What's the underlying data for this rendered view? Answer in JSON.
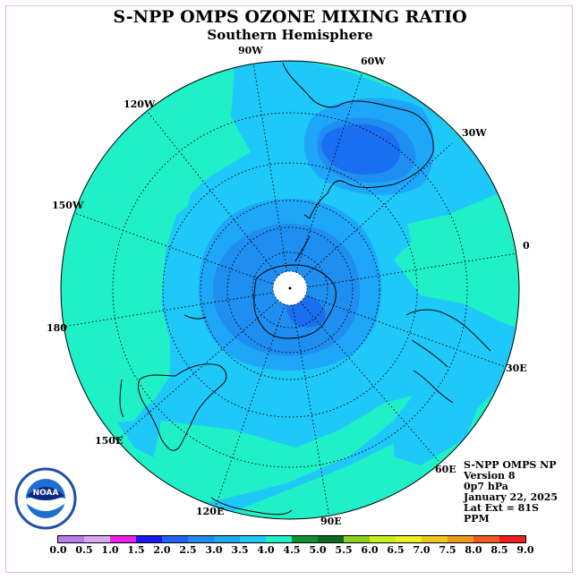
{
  "title": "S-NPP OMPS OZONE MIXING RATIO",
  "subtitle": "Southern Hemisphere",
  "longitude_labels": {
    "w90": "90W",
    "w60": "60W",
    "w30": "30W",
    "e0": "0",
    "e30": "30E",
    "e60": "60E",
    "e90": "90E",
    "e120": "120E",
    "e150": "150E",
    "e180": "180",
    "w150": "150W",
    "w120": "120W"
  },
  "info": {
    "line1": "S-NPP OMPS NP",
    "line2": "Version 8",
    "line3": "0p7 hPa",
    "line4": "January 22, 2025",
    "line5": "Lat Ext = 81S",
    "line6": "PPM"
  },
  "logo_text": "NOAA",
  "colorbar": {
    "ticks": [
      "0.0",
      "0.5",
      "1.0",
      "1.5",
      "2.0",
      "2.5",
      "3.0",
      "3.5",
      "4.0",
      "4.5",
      "5.0",
      "5.5",
      "6.0",
      "6.5",
      "7.0",
      "7.5",
      "8.0",
      "8.5",
      "9.0"
    ],
    "colors": [
      "#b77cf0",
      "#d9a9f2",
      "#ee1ee6",
      "#1a1aee",
      "#1e64f0",
      "#1e8cf0",
      "#1eaaf0",
      "#20c8f8",
      "#20f0c8",
      "#109030",
      "#0a6a20",
      "#8cd020",
      "#c8f020",
      "#f0f020",
      "#f0c81e",
      "#f09a1e",
      "#f05a1e",
      "#f01e1e",
      "#6e4a34"
    ]
  },
  "map_colors": {
    "level_3_0": "#1ec8f8",
    "level_3_5": "#20f0c8",
    "level_2_5": "#1ea6f8",
    "level_2_0": "#1e8ef0",
    "level_1_5": "#1a6ef0"
  }
}
